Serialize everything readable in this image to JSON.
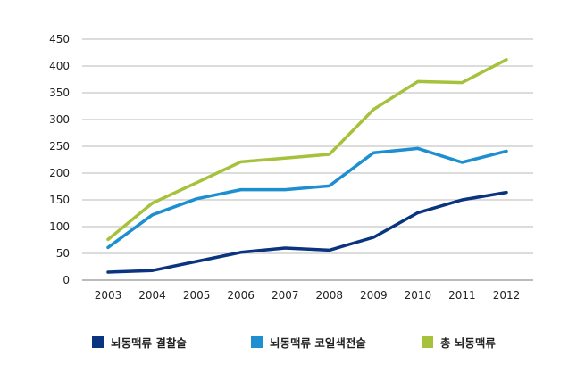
{
  "chart_data": {
    "type": "line",
    "title": "",
    "xlabel": "",
    "ylabel": "",
    "x": [
      "2003",
      "2004",
      "2005",
      "2006",
      "2007",
      "2008",
      "2009",
      "2010",
      "2011",
      "2012"
    ],
    "ylim": [
      0,
      450
    ],
    "yticks": [
      0,
      50,
      100,
      150,
      200,
      250,
      300,
      350,
      400,
      450
    ],
    "grid": true,
    "legend_position": "bottom",
    "series": [
      {
        "name": "뇌동맥류 결찰술",
        "color": "#0a3480",
        "values": [
          15,
          18,
          35,
          52,
          60,
          56,
          80,
          126,
          150,
          164
        ]
      },
      {
        "name": "뇌동맥류 코일색전술",
        "color": "#1d8fd0",
        "values": [
          61,
          122,
          152,
          169,
          169,
          176,
          238,
          246,
          220,
          241
        ]
      },
      {
        "name": "총 뇌동맥류",
        "color": "#a6c23c",
        "values": [
          76,
          144,
          182,
          221,
          228,
          235,
          319,
          371,
          369,
          412
        ]
      }
    ]
  }
}
